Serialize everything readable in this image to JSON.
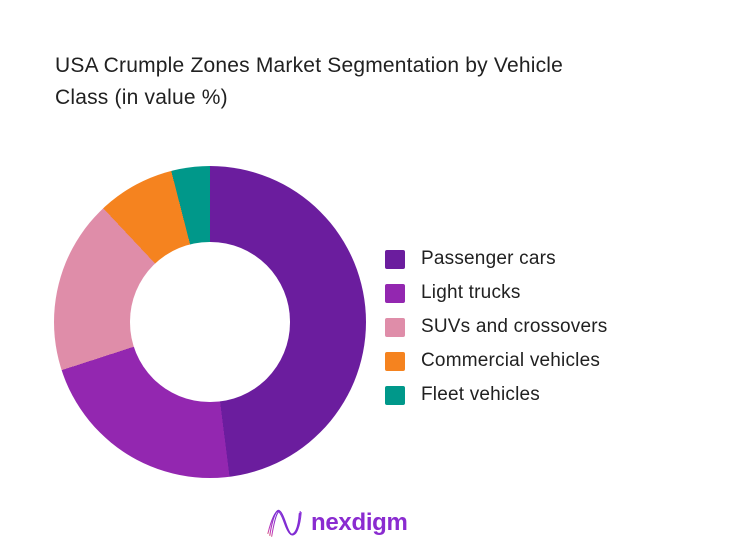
{
  "title": {
    "text": "USA Crumple Zones Market Segmentation by Vehicle Class (in value %)",
    "lines": [
      "USA Crumple Zones Market Segmentation by Vehicle",
      "Class (in value %)"
    ],
    "color": "#212121"
  },
  "chart_data": {
    "type": "pie",
    "subtype": "donut",
    "title": "USA Crumple Zones Market Segmentation by Vehicle Class (in value %)",
    "categories": [
      "Passenger cars",
      "Light trucks",
      "SUVs and crossovers",
      "Commercial vehicles",
      "Fleet vehicles"
    ],
    "values": [
      48,
      22,
      18,
      8,
      4
    ],
    "unit": "percent of market value",
    "colors": [
      "#6B1D9E",
      "#9327B0",
      "#DF8DA9",
      "#F5831F",
      "#00988A"
    ],
    "start_angle_deg": 0,
    "clockwise": true,
    "inner_radius_ratio": 0.51,
    "legend_position": "right",
    "data_labels": false
  },
  "legend": {
    "items": [
      {
        "label": "Passenger cars",
        "color": "#6B1D9E"
      },
      {
        "label": "Light trucks",
        "color": "#9327B0"
      },
      {
        "label": "SUVs and crossovers",
        "color": "#DF8DA9"
      },
      {
        "label": "Commercial vehicles",
        "color": "#F5831F"
      },
      {
        "label": "Fleet vehicles",
        "color": "#00988A"
      }
    ],
    "text_color": "#212121"
  },
  "footer": {
    "logo_text": "nexdigm",
    "logo_color": "#8A2BD0"
  }
}
